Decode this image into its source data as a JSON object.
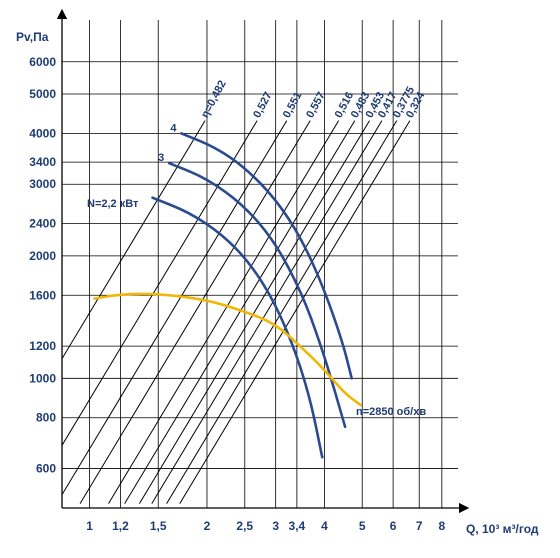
{
  "chart_data": {
    "type": "line",
    "xlabel": "Q, 10³ м³/год",
    "ylabel": "Pv,Па",
    "x_scale": "log",
    "y_scale": "log",
    "xlim": [
      0.85,
      8.8
    ],
    "ylim": [
      480,
      7600
    ],
    "x_ticks": [
      "1",
      "1,2",
      "1,5",
      "2",
      "2,5",
      "3",
      "3,4",
      "4",
      "5",
      "6",
      "7",
      "8"
    ],
    "x_tick_values": [
      1,
      1.2,
      1.5,
      2,
      2.5,
      3,
      3.4,
      4,
      5,
      6,
      7,
      8
    ],
    "y_ticks": [
      "600",
      "800",
      "1000",
      "1200",
      "1600",
      "2000",
      "2400",
      "3000",
      "3400",
      "4000",
      "5000",
      "6000"
    ],
    "y_tick_values": [
      600,
      800,
      1000,
      1200,
      1600,
      2000,
      2400,
      3000,
      3400,
      4000,
      5000,
      6000
    ],
    "grid": true,
    "power_annotation": "N=2,2 кВт",
    "speed_annotation": "n=2850 об/хв",
    "series": [
      {
        "name": "4",
        "color": "#2b4a8f",
        "points": [
          [
            1.72,
            4000
          ],
          [
            2.1,
            3700
          ],
          [
            2.5,
            3300
          ],
          [
            3.0,
            2760
          ],
          [
            3.5,
            2200
          ],
          [
            4.0,
            1650
          ],
          [
            4.45,
            1230
          ],
          [
            4.7,
            1000
          ]
        ]
      },
      {
        "name": "3",
        "color": "#2b4a8f",
        "points": [
          [
            1.6,
            3380
          ],
          [
            2.0,
            3100
          ],
          [
            2.5,
            2650
          ],
          [
            3.0,
            2150
          ],
          [
            3.5,
            1620
          ],
          [
            3.9,
            1220
          ],
          [
            4.2,
            970
          ],
          [
            4.52,
            760
          ]
        ]
      },
      {
        "name": "",
        "color": "#2b4a8f",
        "points": [
          [
            1.45,
            2780
          ],
          [
            1.8,
            2560
          ],
          [
            2.2,
            2250
          ],
          [
            2.6,
            1900
          ],
          [
            3.0,
            1520
          ],
          [
            3.4,
            1140
          ],
          [
            3.7,
            870
          ],
          [
            3.95,
            640
          ]
        ]
      },
      {
        "name": "",
        "color": "#f2b705",
        "points": [
          [
            1.03,
            1570
          ],
          [
            1.2,
            1610
          ],
          [
            1.5,
            1615
          ],
          [
            2.0,
            1560
          ],
          [
            2.5,
            1460
          ],
          [
            3.0,
            1360
          ],
          [
            3.5,
            1190
          ],
          [
            4.0,
            1050
          ],
          [
            4.5,
            920
          ],
          [
            4.95,
            860
          ]
        ]
      }
    ],
    "efficiency_lines": [
      {
        "label": "η=0,482",
        "q": 1.0
      },
      {
        "label": "0,527",
        "q": 1.36
      },
      {
        "label": "0,551",
        "q": 1.62
      },
      {
        "label": "0,557",
        "q": 1.86
      },
      {
        "label": "0,516",
        "q": 2.2
      },
      {
        "label": "0,483",
        "q": 2.42
      },
      {
        "label": "0,453",
        "q": 2.64
      },
      {
        "label": "0,417",
        "q": 2.84
      },
      {
        "label": "0,3775",
        "q": 3.1
      },
      {
        "label": "0,324",
        "q": 3.35
      }
    ],
    "efficiency_line_slope_in_log_space": 1.45
  }
}
